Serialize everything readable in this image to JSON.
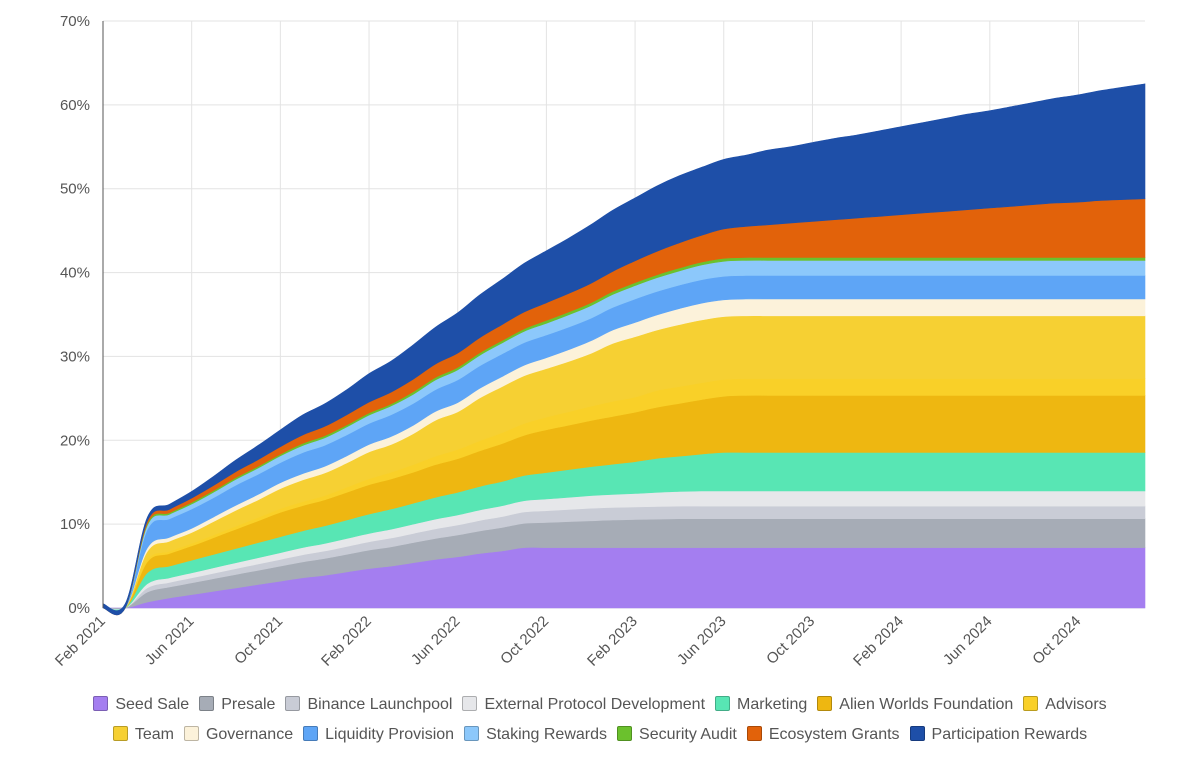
{
  "chart_data": {
    "type": "area",
    "stacked": true,
    "title": "",
    "xlabel": "",
    "ylabel": "",
    "ylim": [
      0,
      70
    ],
    "y_ticks": [
      "0%",
      "10%",
      "20%",
      "30%",
      "40%",
      "50%",
      "60%",
      "70%"
    ],
    "x_ticks": [
      "Feb 2021",
      "Jun 2021",
      "Oct 2021",
      "Feb 2022",
      "Jun 2022",
      "Oct 2022",
      "Feb 2023",
      "Jun 2023",
      "Oct 2023",
      "Feb 2024",
      "Jun 2024",
      "Oct 2024"
    ],
    "x": [
      "Feb 2021",
      "Mar 2021",
      "Apr 2021",
      "May 2021",
      "Jun 2021",
      "Jul 2021",
      "Aug 2021",
      "Sep 2021",
      "Oct 2021",
      "Nov 2021",
      "Dec 2021",
      "Jan 2022",
      "Feb 2022",
      "Mar 2022",
      "Apr 2022",
      "May 2022",
      "Jun 2022",
      "Jul 2022",
      "Aug 2022",
      "Sep 2022",
      "Oct 2022",
      "Nov 2022",
      "Dec 2022",
      "Jan 2023",
      "Feb 2023",
      "Mar 2023",
      "Apr 2023",
      "May 2023",
      "Jun 2023",
      "Jul 2023",
      "Aug 2023",
      "Sep 2023",
      "Oct 2023",
      "Nov 2023",
      "Dec 2023",
      "Jan 2024",
      "Feb 2024",
      "Mar 2024",
      "Apr 2024",
      "May 2024",
      "Jun 2024",
      "Jul 2024",
      "Aug 2024",
      "Sep 2024",
      "Oct 2024",
      "Nov 2024",
      "Dec 2024",
      "Jan 2025"
    ],
    "grid": true,
    "legend_position": "bottom",
    "series": [
      {
        "name": "Seed Sale",
        "color": "#a47ef0",
        "values": [
          0,
          0,
          0.7,
          1.2,
          1.6,
          2.0,
          2.4,
          2.8,
          3.2,
          3.6,
          3.9,
          4.3,
          4.7,
          5.0,
          5.4,
          5.8,
          6.1,
          6.5,
          6.8,
          7.2,
          7.2,
          7.2,
          7.2,
          7.2,
          7.2,
          7.2,
          7.2,
          7.2,
          7.2,
          7.2,
          7.2,
          7.2,
          7.2,
          7.2,
          7.2,
          7.2,
          7.2,
          7.2,
          7.2,
          7.2,
          7.2,
          7.2,
          7.2,
          7.2,
          7.2,
          7.2,
          7.2,
          7.2
        ]
      },
      {
        "name": "Presale",
        "color": "#a6acb6",
        "values": [
          0,
          0,
          1.2,
          1.3,
          1.4,
          1.5,
          1.6,
          1.7,
          1.8,
          1.9,
          2.0,
          2.1,
          2.2,
          2.3,
          2.4,
          2.5,
          2.6,
          2.7,
          2.8,
          2.9,
          3.0,
          3.1,
          3.2,
          3.3,
          3.35,
          3.4,
          3.45,
          3.45,
          3.45,
          3.45,
          3.45,
          3.45,
          3.45,
          3.45,
          3.45,
          3.45,
          3.45,
          3.45,
          3.45,
          3.45,
          3.45,
          3.45,
          3.45,
          3.45,
          3.45,
          3.45,
          3.45,
          3.45
        ]
      },
      {
        "name": "Binance Launchpool",
        "color": "#c9ccd6",
        "values": [
          0,
          0,
          0.5,
          0.55,
          0.6,
          0.65,
          0.7,
          0.75,
          0.8,
          0.85,
          0.9,
          0.95,
          1.0,
          1.05,
          1.1,
          1.15,
          1.2,
          1.25,
          1.3,
          1.35,
          1.4,
          1.45,
          1.5,
          1.5,
          1.5,
          1.5,
          1.5,
          1.5,
          1.5,
          1.5,
          1.5,
          1.5,
          1.5,
          1.5,
          1.5,
          1.5,
          1.5,
          1.5,
          1.5,
          1.5,
          1.5,
          1.5,
          1.5,
          1.5,
          1.5,
          1.5,
          1.5,
          1.5
        ]
      },
      {
        "name": "External Protocol Development",
        "color": "#e6e7ea",
        "values": [
          0,
          0,
          0.5,
          0.55,
          0.6,
          0.65,
          0.7,
          0.75,
          0.8,
          0.85,
          0.9,
          0.95,
          1.0,
          1.05,
          1.1,
          1.15,
          1.2,
          1.25,
          1.3,
          1.35,
          1.4,
          1.45,
          1.5,
          1.55,
          1.6,
          1.7,
          1.75,
          1.8,
          1.8,
          1.8,
          1.8,
          1.8,
          1.8,
          1.8,
          1.8,
          1.8,
          1.8,
          1.8,
          1.8,
          1.8,
          1.8,
          1.8,
          1.8,
          1.8,
          1.8,
          1.8,
          1.8,
          1.8
        ]
      },
      {
        "name": "Marketing",
        "color": "#58e6b4",
        "values": [
          0,
          0,
          1.3,
          1.4,
          1.5,
          1.6,
          1.7,
          1.8,
          1.9,
          2.0,
          2.1,
          2.2,
          2.3,
          2.4,
          2.5,
          2.6,
          2.7,
          2.8,
          2.9,
          3.0,
          3.15,
          3.3,
          3.45,
          3.6,
          3.8,
          4.05,
          4.2,
          4.4,
          4.6,
          4.6,
          4.6,
          4.6,
          4.6,
          4.6,
          4.6,
          4.6,
          4.6,
          4.6,
          4.6,
          4.6,
          4.6,
          4.6,
          4.6,
          4.6,
          4.6,
          4.6,
          4.6,
          4.6
        ]
      },
      {
        "name": "Alien Worlds Foundation",
        "color": "#eeb711",
        "values": [
          0,
          0,
          1.3,
          1.5,
          1.7,
          2.0,
          2.3,
          2.6,
          2.9,
          3.0,
          3.1,
          3.3,
          3.5,
          3.6,
          3.7,
          3.9,
          4.0,
          4.25,
          4.5,
          4.8,
          5.1,
          5.3,
          5.5,
          5.7,
          5.9,
          6.1,
          6.3,
          6.5,
          6.7,
          6.8,
          6.8,
          6.8,
          6.8,
          6.8,
          6.8,
          6.8,
          6.8,
          6.8,
          6.8,
          6.8,
          6.8,
          6.8,
          6.8,
          6.8,
          6.8,
          6.8,
          6.8,
          6.8
        ]
      },
      {
        "name": "Advisors",
        "color": "#f9d028",
        "values": [
          0,
          0,
          0.25,
          0.27,
          0.3,
          0.33,
          0.36,
          0.4,
          0.44,
          0.47,
          0.5,
          0.6,
          0.7,
          0.8,
          0.9,
          1.0,
          1.1,
          1.2,
          1.3,
          1.4,
          1.5,
          1.6,
          1.7,
          1.8,
          1.8,
          2.0,
          2.0,
          2.0,
          2.0,
          2.0,
          2.0,
          2.0,
          2.0,
          2.0,
          2.0,
          2.0,
          2.0,
          2.0,
          2.0,
          2.0,
          2.0,
          2.0,
          2.0,
          2.0,
          2.0,
          2.0,
          2.0,
          2.0
        ]
      },
      {
        "name": "Team",
        "color": "#f6d033",
        "values": [
          0,
          0,
          1.0,
          1.2,
          1.3,
          1.6,
          1.9,
          2.1,
          2.4,
          2.6,
          2.7,
          2.9,
          3.2,
          3.3,
          3.7,
          4.3,
          4.5,
          5.1,
          5.5,
          5.7,
          5.8,
          6.0,
          6.3,
          6.9,
          7.2,
          7.2,
          7.4,
          7.5,
          7.5,
          7.5,
          7.5,
          7.5,
          7.5,
          7.5,
          7.5,
          7.5,
          7.5,
          7.5,
          7.5,
          7.5,
          7.5,
          7.5,
          7.5,
          7.5,
          7.5,
          7.5,
          7.5,
          7.5
        ]
      },
      {
        "name": "Governance",
        "color": "#fcf2da",
        "values": [
          0,
          0,
          0.4,
          0.45,
          0.5,
          0.55,
          0.6,
          0.65,
          0.7,
          0.75,
          0.8,
          0.85,
          0.9,
          0.95,
          1.0,
          1.05,
          1.1,
          1.15,
          1.2,
          1.25,
          1.3,
          1.4,
          1.5,
          1.6,
          1.7,
          1.8,
          1.9,
          2.0,
          2.0,
          2.0,
          2.0,
          2.0,
          2.0,
          2.0,
          2.0,
          2.0,
          2.0,
          2.0,
          2.0,
          2.0,
          2.0,
          2.0,
          2.0,
          2.0,
          2.0,
          2.0,
          2.0,
          2.0
        ]
      },
      {
        "name": "Liquidity Provision",
        "color": "#5ea5f6",
        "values": [
          0,
          0,
          2.2,
          2.2,
          2.3,
          2.3,
          2.4,
          2.4,
          2.4,
          2.5,
          2.5,
          2.5,
          2.5,
          2.6,
          2.6,
          2.6,
          2.7,
          2.7,
          2.7,
          2.7,
          2.7,
          2.7,
          2.7,
          2.7,
          2.8,
          2.8,
          2.8,
          2.8,
          2.8,
          2.8,
          2.8,
          2.8,
          2.8,
          2.8,
          2.8,
          2.8,
          2.8,
          2.8,
          2.8,
          2.8,
          2.8,
          2.8,
          2.8,
          2.8,
          2.8,
          2.8,
          2.8,
          2.8
        ]
      },
      {
        "name": "Staking Rewards",
        "color": "#8cc8fb",
        "values": [
          0,
          0,
          0.5,
          0.55,
          0.6,
          0.65,
          0.7,
          0.75,
          0.8,
          0.85,
          0.9,
          0.95,
          1.0,
          1.05,
          1.1,
          1.15,
          1.2,
          1.25,
          1.3,
          1.35,
          1.4,
          1.45,
          1.5,
          1.55,
          1.6,
          1.65,
          1.7,
          1.75,
          1.8,
          1.8,
          1.8,
          1.8,
          1.8,
          1.8,
          1.8,
          1.8,
          1.8,
          1.8,
          1.8,
          1.8,
          1.8,
          1.8,
          1.8,
          1.8,
          1.8,
          1.8,
          1.8,
          1.8
        ]
      },
      {
        "name": "Security Audit",
        "color": "#6bc12d",
        "values": [
          0,
          0,
          0.2,
          0.2,
          0.2,
          0.2,
          0.2,
          0.2,
          0.2,
          0.25,
          0.25,
          0.25,
          0.25,
          0.25,
          0.3,
          0.3,
          0.3,
          0.3,
          0.3,
          0.3,
          0.35,
          0.35,
          0.35,
          0.35,
          0.35,
          0.35,
          0.35,
          0.35,
          0.35,
          0.35,
          0.35,
          0.35,
          0.35,
          0.35,
          0.35,
          0.35,
          0.35,
          0.35,
          0.35,
          0.35,
          0.35,
          0.35,
          0.35,
          0.35,
          0.35,
          0.35,
          0.35,
          0.35
        ]
      },
      {
        "name": "Ecosystem Grants",
        "color": "#e2620a",
        "values": [
          0,
          0,
          0.3,
          0.4,
          0.5,
          0.6,
          0.7,
          0.8,
          0.9,
          1.0,
          1.1,
          1.2,
          1.3,
          1.4,
          1.5,
          1.6,
          1.7,
          1.8,
          1.9,
          2.0,
          2.1,
          2.2,
          2.3,
          2.4,
          2.6,
          2.8,
          3.0,
          3.2,
          3.5,
          3.7,
          3.9,
          4.1,
          4.3,
          4.5,
          4.7,
          4.9,
          5.1,
          5.3,
          5.5,
          5.7,
          5.9,
          6.1,
          6.3,
          6.5,
          6.6,
          6.8,
          6.9,
          7.0
        ]
      },
      {
        "name": "Participation Rewards",
        "color": "#1e4fa8",
        "values": [
          0.5,
          0.5,
          0.45,
          0.6,
          0.8,
          1.1,
          1.4,
          1.7,
          2.0,
          2.4,
          2.7,
          3.0,
          3.4,
          3.7,
          4.1,
          4.4,
          4.8,
          5.1,
          5.4,
          5.8,
          6.2,
          6.6,
          7.0,
          7.3,
          7.5,
          7.8,
          8.0,
          8.1,
          8.3,
          8.5,
          8.9,
          9.1,
          9.4,
          9.7,
          9.9,
          10.2,
          10.5,
          10.8,
          11.1,
          11.4,
          11.6,
          11.9,
          12.2,
          12.5,
          12.8,
          13.1,
          13.4,
          13.7
        ]
      }
    ]
  }
}
